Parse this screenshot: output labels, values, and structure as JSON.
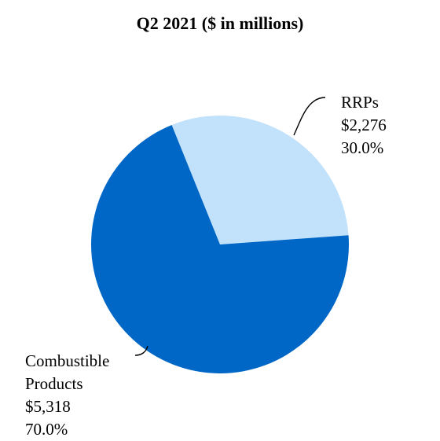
{
  "chart_data": {
    "type": "pie",
    "title": "Q2 2021 ($ in millions)",
    "slices": [
      {
        "label_lines": [
          "RRPs"
        ],
        "value_text": "$2,276",
        "percent_text": "30.0%",
        "value": 2276,
        "percent": 30.0,
        "color": "#c2e2fb"
      },
      {
        "label_lines": [
          "Combustible",
          "Products"
        ],
        "value_text": "$5,318",
        "percent_text": "70.0%",
        "value": 5318,
        "percent": 70.0,
        "color": "#0067c6"
      }
    ]
  }
}
